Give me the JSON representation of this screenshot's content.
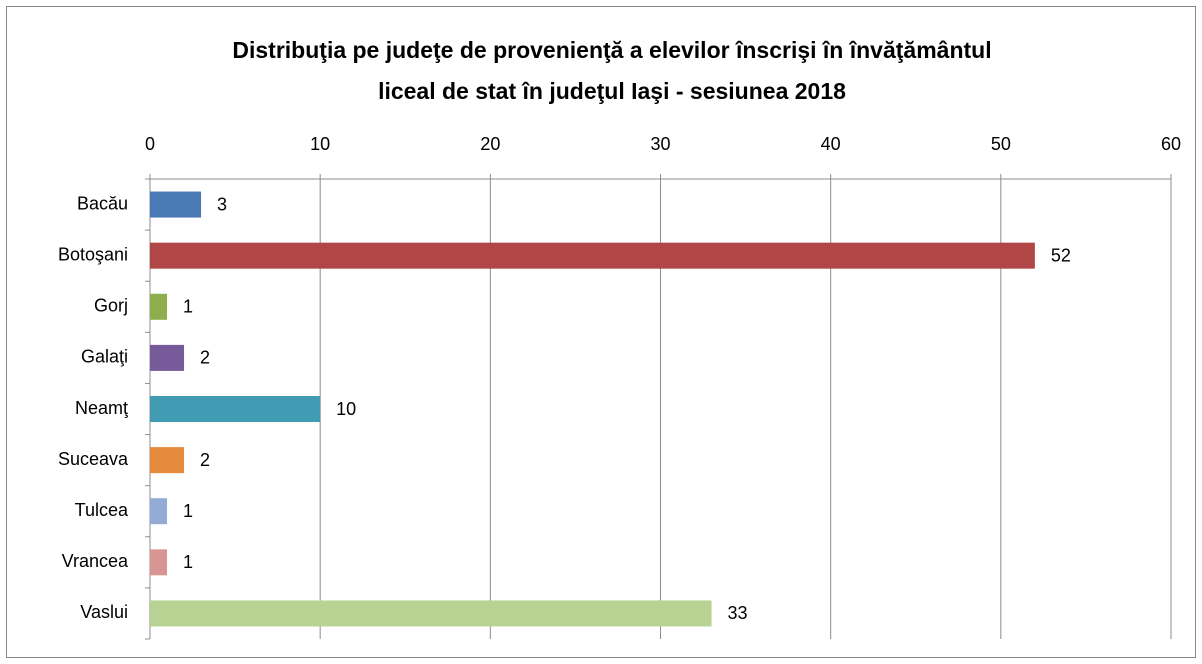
{
  "chart_data": {
    "type": "bar",
    "orientation": "horizontal",
    "title": [
      "Distribuţia pe judeţe de provenienţă a elevilor înscrişi în învăţământul",
      "liceal de stat în judeţul Iaşi - sesiunea 2018"
    ],
    "categories": [
      "Bacău",
      "Botoşani",
      "Gorj",
      "Galaţi",
      "Neamţ",
      "Suceava",
      "Tulcea",
      "Vrancea",
      "Vaslui"
    ],
    "values": [
      3,
      52,
      1,
      2,
      10,
      2,
      1,
      1,
      33
    ],
    "colors": [
      "#4a7ab5",
      "#b04645",
      "#8ead4c",
      "#765a9a",
      "#419bb3",
      "#e5893d",
      "#94abd6",
      "#d99594",
      "#b8d294"
    ],
    "xlim": [
      0,
      60
    ],
    "xticks": [
      0,
      10,
      20,
      30,
      40,
      50,
      60
    ],
    "grid": true
  }
}
